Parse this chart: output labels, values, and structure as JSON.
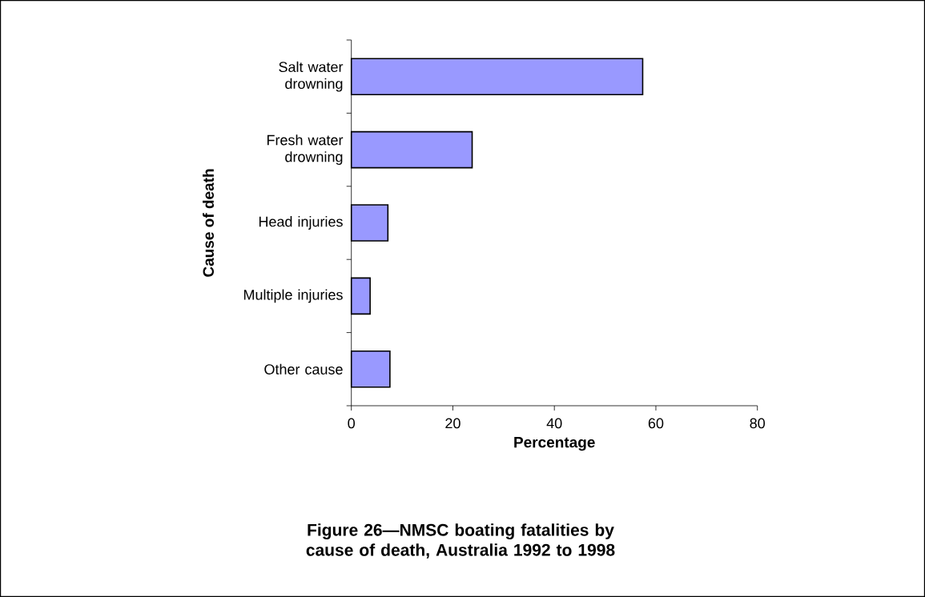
{
  "chart_data": {
    "type": "bar",
    "orientation": "horizontal",
    "title": "Figure 26—NMSC boating fatalities by cause of death, Australia 1992 to 1998",
    "xlabel": "Percentage",
    "ylabel": "Cause of death",
    "categories": [
      "Salt water drowning",
      "Fresh water drowning",
      "Head injuries",
      "Multiple injuries",
      "Other cause"
    ],
    "values": [
      57.4,
      23.8,
      7.2,
      3.7,
      7.6
    ],
    "color": "#9999ff",
    "xlim": [
      0,
      80
    ],
    "xticks": [
      0,
      20,
      40,
      60,
      80
    ],
    "grid": false
  }
}
